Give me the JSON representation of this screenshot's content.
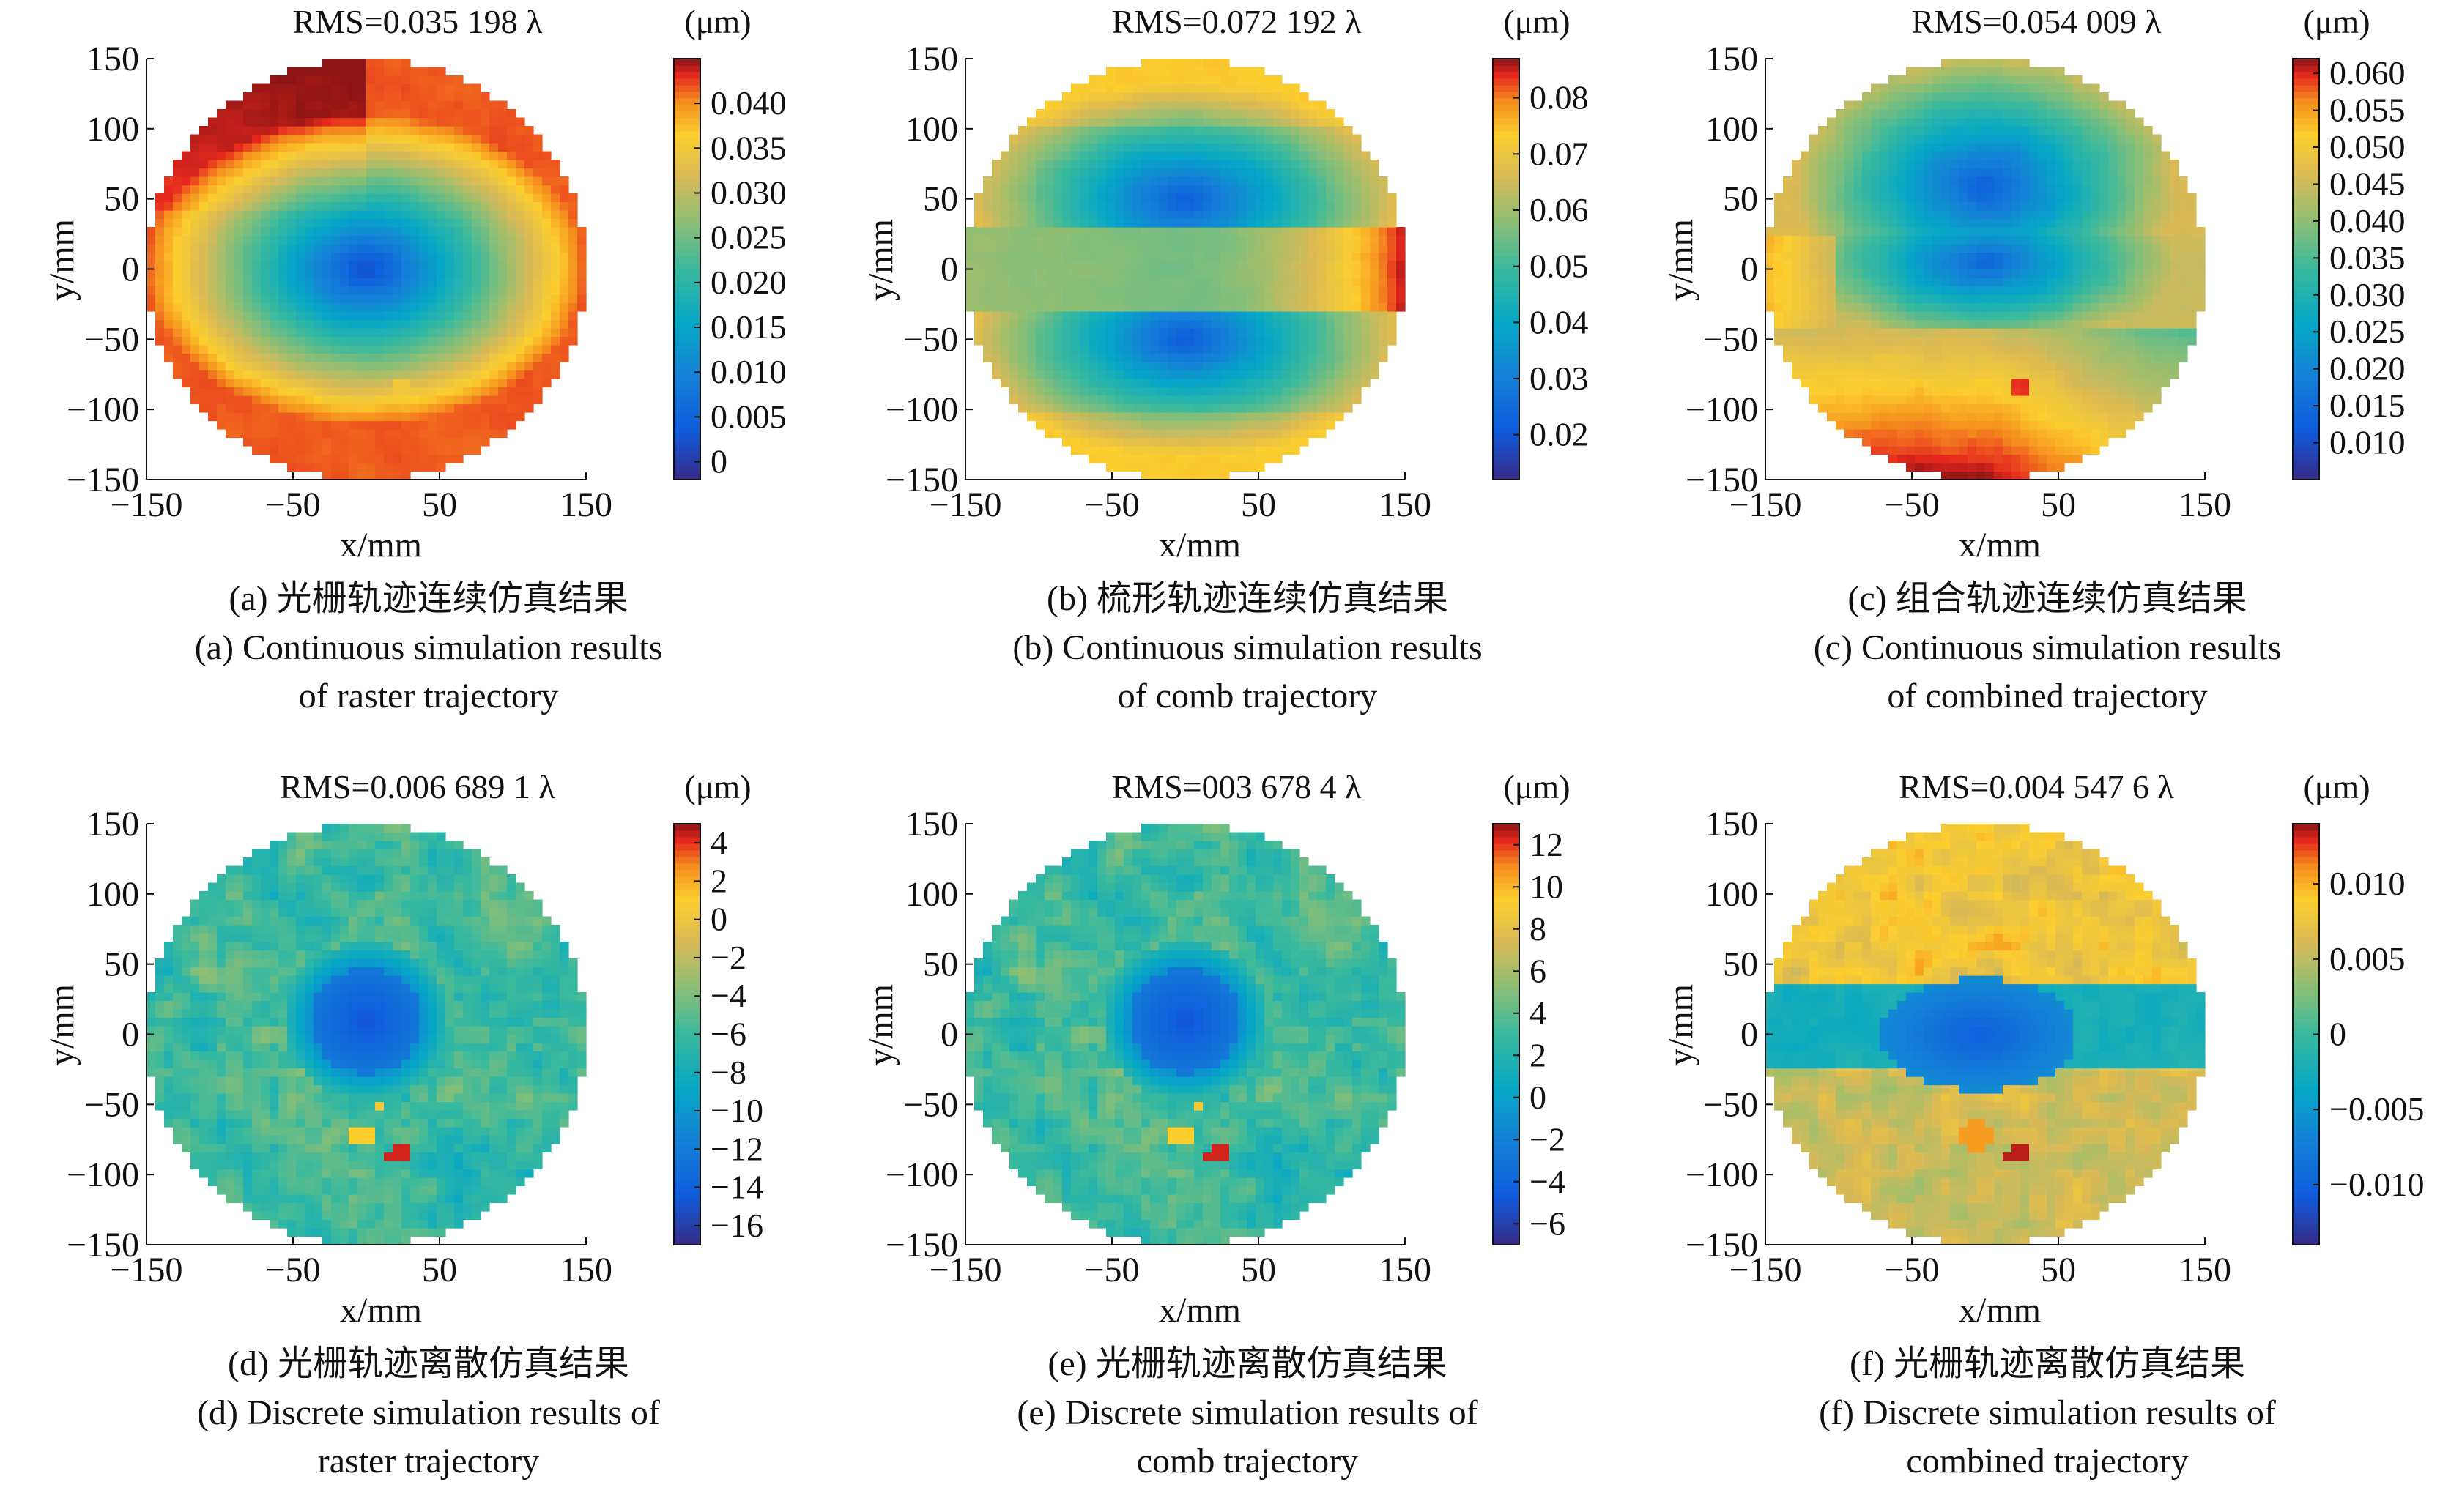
{
  "panels": [
    {
      "title": "RMS=0.035 198 λ",
      "unit": "(μm)",
      "xlabel": "x/mm",
      "ylabel": "y/mm",
      "caption_cn": "(a) 光栅轨迹连续仿真结果",
      "caption_en_1": "(a) Continuous simulation results",
      "caption_en_2": "of raster trajectory",
      "colorbar_ticks": [
        "0",
        "0.005",
        "0.010",
        "0.015",
        "0.020",
        "0.025",
        "0.030",
        "0.035",
        "0.040"
      ]
    },
    {
      "title": "RMS=0.072 192 λ",
      "unit": "(μm)",
      "xlabel": "x/mm",
      "ylabel": "y/mm",
      "caption_cn": "(b) 梳形轨迹连续仿真结果",
      "caption_en_1": "(b) Continuous simulation results",
      "caption_en_2": "of comb trajectory",
      "colorbar_ticks": [
        "0.02",
        "0.03",
        "0.04",
        "0.05",
        "0.06",
        "0.07",
        "0.08"
      ]
    },
    {
      "title": "RMS=0.054 009 λ",
      "unit": "(μm)",
      "xlabel": "x/mm",
      "ylabel": "y/mm",
      "caption_cn": "(c) 组合轨迹连续仿真结果",
      "caption_en_1": "(c) Continuous simulation results",
      "caption_en_2": "of combined trajectory",
      "colorbar_ticks": [
        "0.010",
        "0.015",
        "0.020",
        "0.025",
        "0.030",
        "0.035",
        "0.040",
        "0.045",
        "0.050",
        "0.055",
        "0.060"
      ]
    },
    {
      "title": "RMS=0.006 689 1 λ",
      "unit": "(μm)",
      "xlabel": "x/mm",
      "ylabel": "y/mm",
      "caption_cn": "(d) 光栅轨迹离散仿真结果",
      "caption_en_1": "(d) Discrete simulation results of",
      "caption_en_2": "raster trajectory",
      "colorbar_ticks": [
        "−16",
        "−14",
        "−12",
        "−10",
        "−8",
        "−6",
        "−4",
        "−2",
        "0",
        "2",
        "4"
      ]
    },
    {
      "title": "RMS=003 678 4 λ",
      "unit": "(μm)",
      "xlabel": "x/mm",
      "ylabel": "y/mm",
      "caption_cn": "(e) 光栅轨迹离散仿真结果",
      "caption_en_1": "(e) Discrete simulation results of",
      "caption_en_2": "comb trajectory",
      "colorbar_ticks": [
        "−6",
        "−4",
        "−2",
        "0",
        "2",
        "4",
        "6",
        "8",
        "10",
        "12"
      ]
    },
    {
      "title": "RMS=0.004 547 6 λ",
      "unit": "(μm)",
      "xlabel": "x/mm",
      "ylabel": "y/mm",
      "caption_cn": "(f) 光栅轨迹离散仿真结果",
      "caption_en_1": "(f) Discrete simulation results of",
      "caption_en_2": "combined trajectory",
      "colorbar_ticks": [
        "−0.010",
        "−0.005",
        "0",
        "0.005",
        "0.010"
      ]
    }
  ],
  "chart_data": [
    {
      "type": "heatmap",
      "title": "RMS=0.035 198 λ",
      "xlabel": "x/mm",
      "ylabel": "y/mm",
      "xlim": [
        -150,
        150
      ],
      "ylim": [
        -150,
        150
      ],
      "x_ticks": [
        -150,
        -50,
        50,
        150
      ],
      "y_ticks": [
        150,
        100,
        50,
        0,
        -50,
        -100,
        -150
      ],
      "colorbar_label": "(μm)",
      "colorbar_range": [
        -0.002,
        0.045
      ],
      "colorbar_ticks": [
        0,
        0.005,
        0.01,
        0.015,
        0.02,
        0.025,
        0.03,
        0.035,
        0.04
      ],
      "pattern": "radial",
      "center_value": 0.004,
      "edge_value": 0.04,
      "extreme_value": 0.045
    },
    {
      "type": "heatmap",
      "title": "RMS=0.072 192 λ",
      "xlabel": "x/mm",
      "ylabel": "y/mm",
      "xlim": [
        -150,
        150
      ],
      "ylim": [
        -150,
        150
      ],
      "x_ticks": [
        -150,
        -50,
        50,
        150
      ],
      "y_ticks": [
        150,
        100,
        50,
        0,
        -50,
        -100,
        -150
      ],
      "colorbar_label": "(μm)",
      "colorbar_range": [
        0.012,
        0.087
      ],
      "colorbar_ticks": [
        0.02,
        0.03,
        0.04,
        0.05,
        0.06,
        0.07,
        0.08
      ],
      "pattern": "band",
      "center_value": 0.025,
      "edge_value": 0.06,
      "extreme_value": 0.085
    },
    {
      "type": "heatmap",
      "title": "RMS=0.054 009 λ",
      "xlabel": "x/mm",
      "ylabel": "y/mm",
      "xlim": [
        -150,
        150
      ],
      "ylim": [
        -150,
        150
      ],
      "x_ticks": [
        -150,
        -50,
        50,
        150
      ],
      "y_ticks": [
        150,
        100,
        50,
        0,
        -50,
        -100,
        -150
      ],
      "colorbar_label": "(μm)",
      "colorbar_range": [
        0.005,
        0.062
      ],
      "colorbar_ticks": [
        0.01,
        0.015,
        0.02,
        0.025,
        0.03,
        0.035,
        0.04,
        0.045,
        0.05,
        0.055,
        0.06
      ],
      "pattern": "split",
      "center_value": 0.018,
      "edge_value": 0.055,
      "extreme_value": 0.06
    },
    {
      "type": "heatmap",
      "title": "RMS=0.006 689 1 λ",
      "xlabel": "x/mm",
      "ylabel": "y/mm",
      "xlim": [
        -150,
        150
      ],
      "ylim": [
        -150,
        150
      ],
      "x_ticks": [
        -150,
        -50,
        50,
        150
      ],
      "y_ticks": [
        150,
        100,
        50,
        0,
        -50,
        -100,
        -150
      ],
      "colorbar_label": "(μm)",
      "colorbar_range": [
        -17,
        5
      ],
      "colorbar_ticks": [
        -16,
        -14,
        -12,
        -10,
        -8,
        -6,
        -4,
        -2,
        0,
        2,
        4
      ],
      "pattern": "spot",
      "center_value": -15,
      "edge_value": -6,
      "extreme_value": 4
    },
    {
      "type": "heatmap",
      "title": "RMS=003 678 4 λ",
      "xlabel": "x/mm",
      "ylabel": "y/mm",
      "xlim": [
        -150,
        150
      ],
      "ylim": [
        -150,
        150
      ],
      "x_ticks": [
        -150,
        -50,
        50,
        150
      ],
      "y_ticks": [
        150,
        100,
        50,
        0,
        -50,
        -100,
        -150
      ],
      "colorbar_label": "(μm)",
      "colorbar_range": [
        -7,
        13
      ],
      "colorbar_ticks": [
        -6,
        -4,
        -2,
        0,
        2,
        4,
        6,
        8,
        10,
        12
      ],
      "pattern": "spot",
      "center_value": -5,
      "edge_value": 3,
      "extreme_value": 12
    },
    {
      "type": "heatmap",
      "title": "RMS=0.004 547 6 λ",
      "xlabel": "x/mm",
      "ylabel": "y/mm",
      "xlim": [
        -150,
        150
      ],
      "ylim": [
        -150,
        150
      ],
      "x_ticks": [
        -150,
        -50,
        50,
        150
      ],
      "y_ticks": [
        150,
        100,
        50,
        0,
        -50,
        -100,
        -150
      ],
      "colorbar_label": "(μm)",
      "colorbar_range": [
        -0.014,
        0.014
      ],
      "colorbar_ticks": [
        -0.01,
        -0.005,
        0,
        0.005,
        0.01
      ],
      "pattern": "band-spot",
      "center_value": -0.011,
      "edge_value": 0.006,
      "extreme_value": 0.013
    }
  ]
}
